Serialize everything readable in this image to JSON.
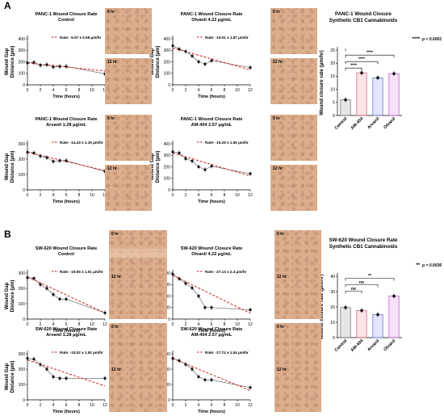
{
  "panels": {
    "a": "A",
    "b": "B"
  },
  "micro_labels": {
    "t0": "0 hr",
    "t12": "12 hr"
  },
  "chart_data": [
    {
      "type": "scatter",
      "id": "a1",
      "title": [
        "PANC-1 Wound Closure Rate",
        "Control"
      ],
      "xlabel": "Time (hours)",
      "ylabel": [
        "Wound Gap",
        "Distance (μm)"
      ],
      "xlim": [
        0,
        12
      ],
      "ylim": [
        0,
        400
      ],
      "xticks": [
        0,
        2,
        4,
        6,
        8,
        10,
        12
      ],
      "yticks": [
        0,
        100,
        200,
        300,
        400
      ],
      "legend": "Rate: -5.97 ± 0.55 μm/hr",
      "x": [
        0,
        1,
        2,
        3,
        4,
        5,
        6,
        12
      ],
      "y": [
        190,
        195,
        170,
        175,
        155,
        160,
        160,
        95
      ],
      "fit": [
        [
          0,
          190
        ],
        [
          12,
          120
        ]
      ]
    },
    {
      "type": "scatter",
      "id": "a2",
      "title": [
        "PANC-1 Wound Closure Rate",
        "Olvanil 4.22 μg/mL"
      ],
      "xlabel": "Time (hours)",
      "ylabel": [
        "Wound Gap",
        "Distance (μm)"
      ],
      "xlim": [
        0,
        12
      ],
      "ylim": [
        0,
        400
      ],
      "xticks": [
        0,
        2,
        4,
        6,
        8,
        10,
        12
      ],
      "yticks": [
        0,
        100,
        200,
        300,
        400
      ],
      "legend": "Rate: -16.01 ± 1.87 μm/hr",
      "x": [
        0,
        1,
        2,
        3,
        4,
        5,
        6,
        12
      ],
      "y": [
        340,
        310,
        290,
        250,
        200,
        180,
        210,
        150
      ],
      "fit": [
        [
          0,
          320
        ],
        [
          12,
          130
        ]
      ]
    },
    {
      "type": "scatter",
      "id": "a3",
      "title": [
        "PANC-1 Wound Closure Rate",
        "Arvanil 1.28 μg/mL"
      ],
      "xlabel": "Time (hours)",
      "ylabel": [
        "Wound Gap",
        "Distance (μm)"
      ],
      "xlim": [
        0,
        12
      ],
      "ylim": [
        0,
        300
      ],
      "xticks": [
        0,
        2,
        4,
        6,
        8,
        10,
        12
      ],
      "yticks": [
        0,
        100,
        200,
        300
      ],
      "legend": "Rate: -14.43 ± 1.15 μm/hr",
      "x": [
        0,
        1,
        2,
        3,
        4,
        5,
        6,
        12
      ],
      "y": [
        245,
        240,
        220,
        210,
        185,
        190,
        190,
        120
      ],
      "fit": [
        [
          0,
          245
        ],
        [
          12,
          125
        ]
      ]
    },
    {
      "type": "scatter",
      "id": "a4",
      "title": [
        "PANC-1 Wound Closure Rate",
        "AM-404 2.57 μg/mL"
      ],
      "xlabel": "Time (hours)",
      "ylabel": [
        "Wound Gap",
        "Distance (μm)"
      ],
      "xlim": [
        0,
        12
      ],
      "ylim": [
        0,
        400
      ],
      "xticks": [
        0,
        2,
        4,
        6,
        8,
        10,
        12
      ],
      "yticks": [
        0,
        100,
        200,
        300,
        400
      ],
      "legend": "Rate: -16.26 ± 1.65 μm/hr",
      "x": [
        0,
        1,
        2,
        3,
        4,
        5,
        6,
        12
      ],
      "y": [
        330,
        320,
        270,
        250,
        200,
        175,
        205,
        140
      ],
      "fit": [
        [
          0,
          320
        ],
        [
          12,
          120
        ]
      ]
    },
    {
      "type": "bar",
      "id": "a5",
      "title": [
        "PANC-1 Wound Closure",
        "Synthetic CB1 Cannabinoids"
      ],
      "ylabel": "Wound closure rate (μm/hr)",
      "ylim": [
        0,
        25
      ],
      "yticks": [
        0,
        5,
        10,
        15,
        20,
        25
      ],
      "categories": [
        "Control",
        "AM-404",
        "Arvanil",
        "Olvanil"
      ],
      "values": [
        6,
        16.3,
        14.4,
        16
      ],
      "colors": [
        "#777777",
        "#e06a78",
        "#6a78e0",
        "#c060d0"
      ],
      "sig": [
        "****",
        "****",
        "****",
        "****"
      ],
      "p": "p < 0.0001",
      "p_stars": "****"
    },
    {
      "type": "scatter",
      "id": "b1",
      "title": [
        "SW-620 Wound Closure Rate",
        "Control"
      ],
      "xlabel": "Time (hours)",
      "ylabel": [
        "Wound Gap",
        "Distance (μm)"
      ],
      "xlim": [
        0,
        12
      ],
      "ylim": [
        0,
        300
      ],
      "xticks": [
        0,
        2,
        4,
        6,
        8,
        10,
        12
      ],
      "yticks": [
        0,
        100,
        200,
        300
      ],
      "legend": "Rate: -19.65 ± 1.01 μm/hr",
      "x": [
        0,
        1,
        2,
        3,
        4,
        5,
        6,
        12
      ],
      "y": [
        270,
        265,
        225,
        200,
        160,
        130,
        130,
        40
      ],
      "fit": [
        [
          0,
          275
        ],
        [
          12,
          40
        ]
      ]
    },
    {
      "type": "scatter",
      "id": "b2",
      "title": [
        "SW-620 Wound Closure Rate",
        "Olvanil 4.22 μg/mL"
      ],
      "xlabel": "Time (hours)",
      "ylabel": [
        "Wound Gap",
        "Distance (μm)"
      ],
      "xlim": [
        0,
        12
      ],
      "ylim": [
        0,
        400
      ],
      "xticks": [
        0,
        2,
        4,
        6,
        8,
        10,
        12
      ],
      "yticks": [
        0,
        100,
        200,
        300,
        400
      ],
      "legend": "Rate: -27.13 ± 2.4 μm/hr",
      "x": [
        0,
        1,
        2,
        3,
        4,
        5,
        6,
        12
      ],
      "y": [
        390,
        350,
        310,
        270,
        200,
        100,
        100,
        80
      ],
      "fit": [
        [
          0,
          380
        ],
        [
          12,
          50
        ]
      ]
    },
    {
      "type": "scatter",
      "id": "b3",
      "title": [
        "SW-620 Wound Closure Rate",
        "Arvanil 1.28 μg/mL"
      ],
      "xlabel": "Time (hours)",
      "ylabel": [
        "Wound Gap",
        "Distance (μm)"
      ],
      "xlim": [
        0,
        12
      ],
      "ylim": [
        0,
        300
      ],
      "xticks": [
        0,
        2,
        4,
        6,
        8,
        10,
        12
      ],
      "yticks": [
        0,
        100,
        200,
        300
      ],
      "legend": "Rate: -15.02 ± 1.92 μm/hr",
      "x": [
        0,
        1,
        2,
        3,
        4,
        5,
        6,
        12
      ],
      "y": [
        270,
        265,
        230,
        200,
        150,
        140,
        140,
        140
      ],
      "fit": [
        [
          0,
          260
        ],
        [
          12,
          90
        ]
      ]
    },
    {
      "type": "scatter",
      "id": "b4",
      "title": [
        "SW-620 Wound Closure Rate",
        "AM-404 2.57 μg/mL"
      ],
      "xlabel": "Time (hours)",
      "ylabel": [
        "Wound Gap",
        "Distance (μm)"
      ],
      "xlim": [
        0,
        12
      ],
      "ylim": [
        0,
        300
      ],
      "xticks": [
        0,
        2,
        4,
        6,
        8,
        10,
        12
      ],
      "yticks": [
        0,
        100,
        200,
        300
      ],
      "legend": "Rate: -17.74 ± 1.54 μm/hr",
      "x": [
        0,
        1,
        2,
        3,
        4,
        5,
        6,
        12
      ],
      "y": [
        270,
        255,
        230,
        200,
        150,
        130,
        130,
        80
      ],
      "fit": [
        [
          0,
          270
        ],
        [
          12,
          60
        ]
      ]
    },
    {
      "type": "bar",
      "id": "b5",
      "title": [
        "SW-620 Wound Closure Rate",
        "Synthetic CB1 Cannabinoids"
      ],
      "ylabel": "Wound closure rate (μm/hr)",
      "ylim": [
        0,
        40
      ],
      "yticks": [
        0,
        10,
        20,
        30,
        40
      ],
      "categories": [
        "Control",
        "AM-404",
        "Arvanil",
        "Olvanil"
      ],
      "values": [
        19.6,
        17.7,
        15,
        27.1
      ],
      "colors": [
        "#777777",
        "#e06a78",
        "#6a78e0",
        "#c060d0"
      ],
      "sig": [
        "ns",
        "ns",
        "**"
      ],
      "p": "p = 0.0036",
      "p_stars": "**"
    }
  ]
}
